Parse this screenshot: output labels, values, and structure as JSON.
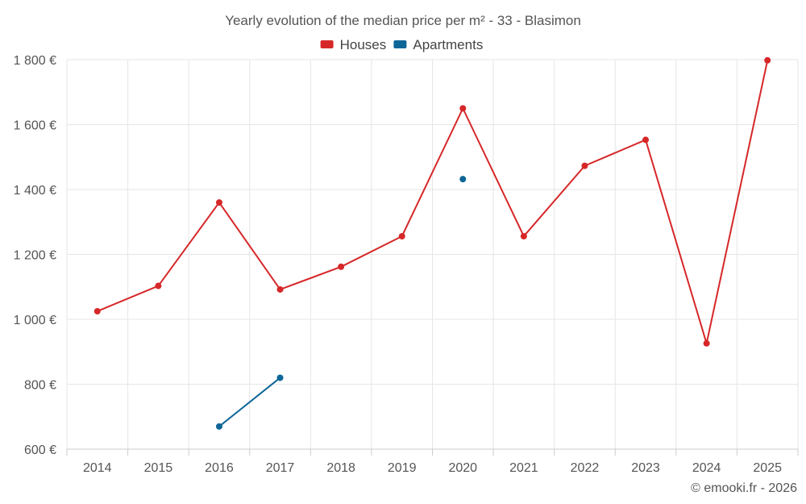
{
  "chart_data": {
    "type": "line",
    "title": "Yearly evolution of the median price per m² - 33 - Blasimon",
    "categories": [
      "2014",
      "2015",
      "2016",
      "2017",
      "2018",
      "2019",
      "2020",
      "2021",
      "2022",
      "2023",
      "2024",
      "2025"
    ],
    "series": [
      {
        "name": "Houses",
        "color": "#d62728",
        "values": [
          1025,
          1103,
          1360,
          1092,
          1162,
          1256,
          1650,
          1256,
          1473,
          1553,
          926,
          1798
        ]
      },
      {
        "name": "Apartments",
        "color": "#0e6698",
        "values": [
          null,
          null,
          670,
          820,
          null,
          null,
          1432,
          null,
          null,
          null,
          null,
          null
        ]
      }
    ],
    "ylim": [
      600,
      1800
    ],
    "yticks": [
      600,
      800,
      1000,
      1200,
      1400,
      1600,
      1800
    ],
    "ytick_labels": [
      "600 €",
      "800 €",
      "1 000 €",
      "1 200 €",
      "1 400 €",
      "1 600 €",
      "1 800 €"
    ],
    "grid": true,
    "legend_position": "top-center"
  },
  "credit": "© emooki.fr - 2026"
}
